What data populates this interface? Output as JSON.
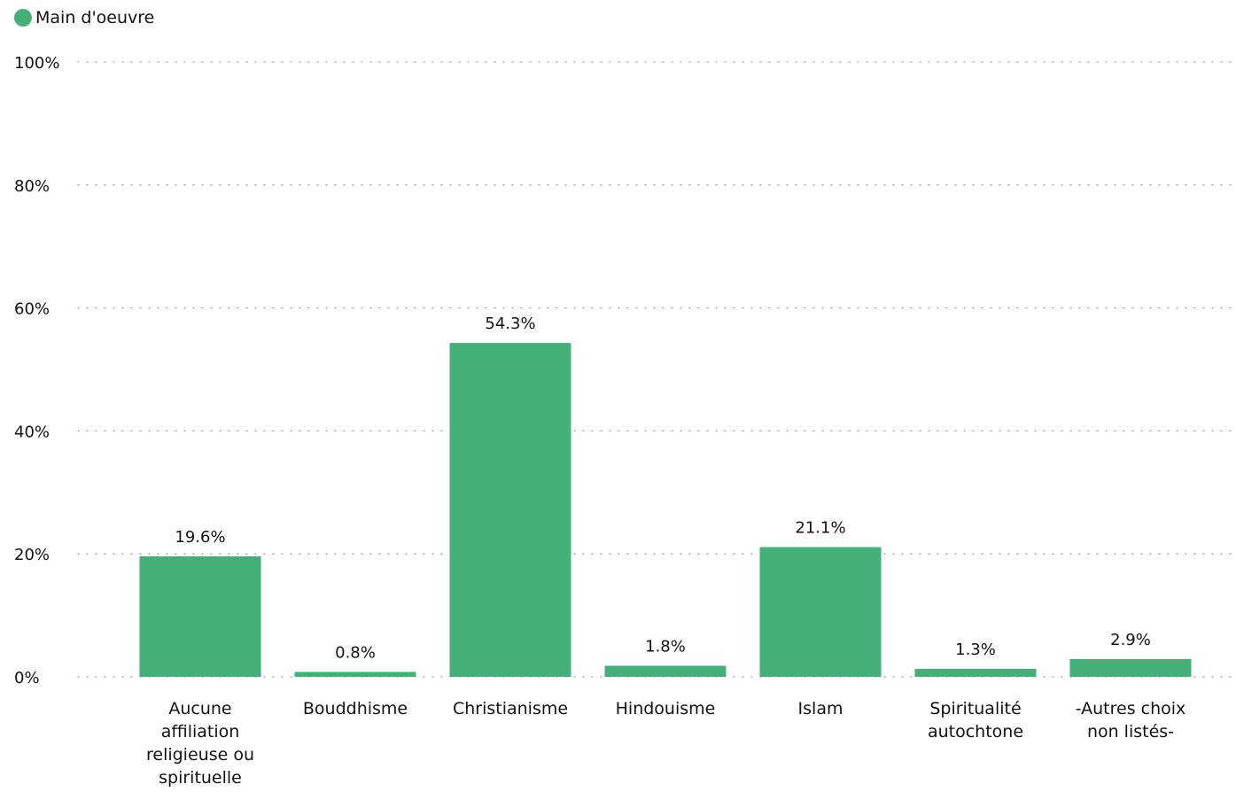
{
  "chart_data": {
    "type": "bar",
    "categories": [
      [
        "Aucune",
        "affiliation",
        "religieuse ou",
        "spirituelle"
      ],
      [
        "Bouddhisme"
      ],
      [
        "Christianisme"
      ],
      [
        "Hindouisme"
      ],
      [
        "Islam"
      ],
      [
        "Spiritualité",
        "autochtone"
      ],
      [
        "-Autres choix",
        "non listés-"
      ]
    ],
    "series": [
      {
        "name": "Main d'oeuvre",
        "color": "#43b077",
        "values": [
          19.6,
          0.8,
          54.3,
          1.8,
          21.1,
          1.3,
          2.9
        ],
        "value_labels": [
          "19.6%",
          "0.8%",
          "54.3%",
          "1.8%",
          "21.1%",
          "1.3%",
          "2.9%"
        ]
      }
    ],
    "ylim": [
      0,
      100
    ],
    "yticks": [
      0,
      20,
      40,
      60,
      80,
      100
    ],
    "ytick_labels": [
      "0%",
      "20%",
      "40%",
      "60%",
      "80%",
      "100%"
    ],
    "grid": true,
    "legend": "top-left"
  }
}
